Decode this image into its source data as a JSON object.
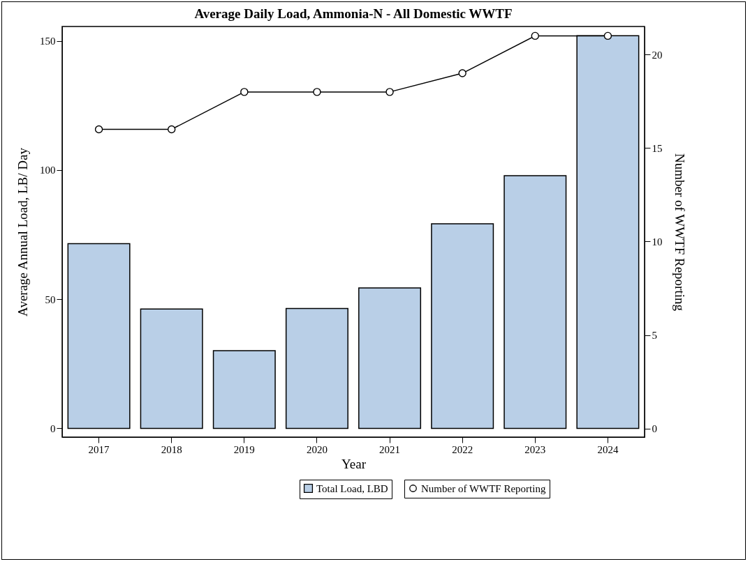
{
  "chart_data": {
    "type": "bar",
    "title": "Average Daily Load, Ammonia-N - All Domestic WWTF",
    "xlabel": "Year",
    "ylabel": "Average Annual Load, LB/ Day",
    "y2label": "Number of WWTF Reporting",
    "categories": [
      "2017",
      "2018",
      "2019",
      "2020",
      "2021",
      "2022",
      "2023",
      "2024"
    ],
    "series": [
      {
        "name": "Total Load, LBD",
        "color": "#b9cfe7",
        "values": [
          71.5,
          46.2,
          30.1,
          46.4,
          54.4,
          79.2,
          97.8,
          152.0
        ]
      },
      {
        "name": "Number of WWTF Reporting",
        "type": "line",
        "axis": "y2",
        "color": "#000000",
        "marker": "circle",
        "line_style": "solid",
        "values": [
          16,
          16,
          18,
          18,
          18,
          19,
          21,
          21
        ]
      }
    ],
    "ylim": [
      -3.4,
      155.6
    ],
    "yticks": [
      0,
      50,
      100,
      150
    ],
    "y2lim": [
      -0.46,
      21.5
    ],
    "y2ticks": [
      0,
      5,
      10,
      15,
      20
    ],
    "grid": false,
    "legend": "bottom"
  }
}
